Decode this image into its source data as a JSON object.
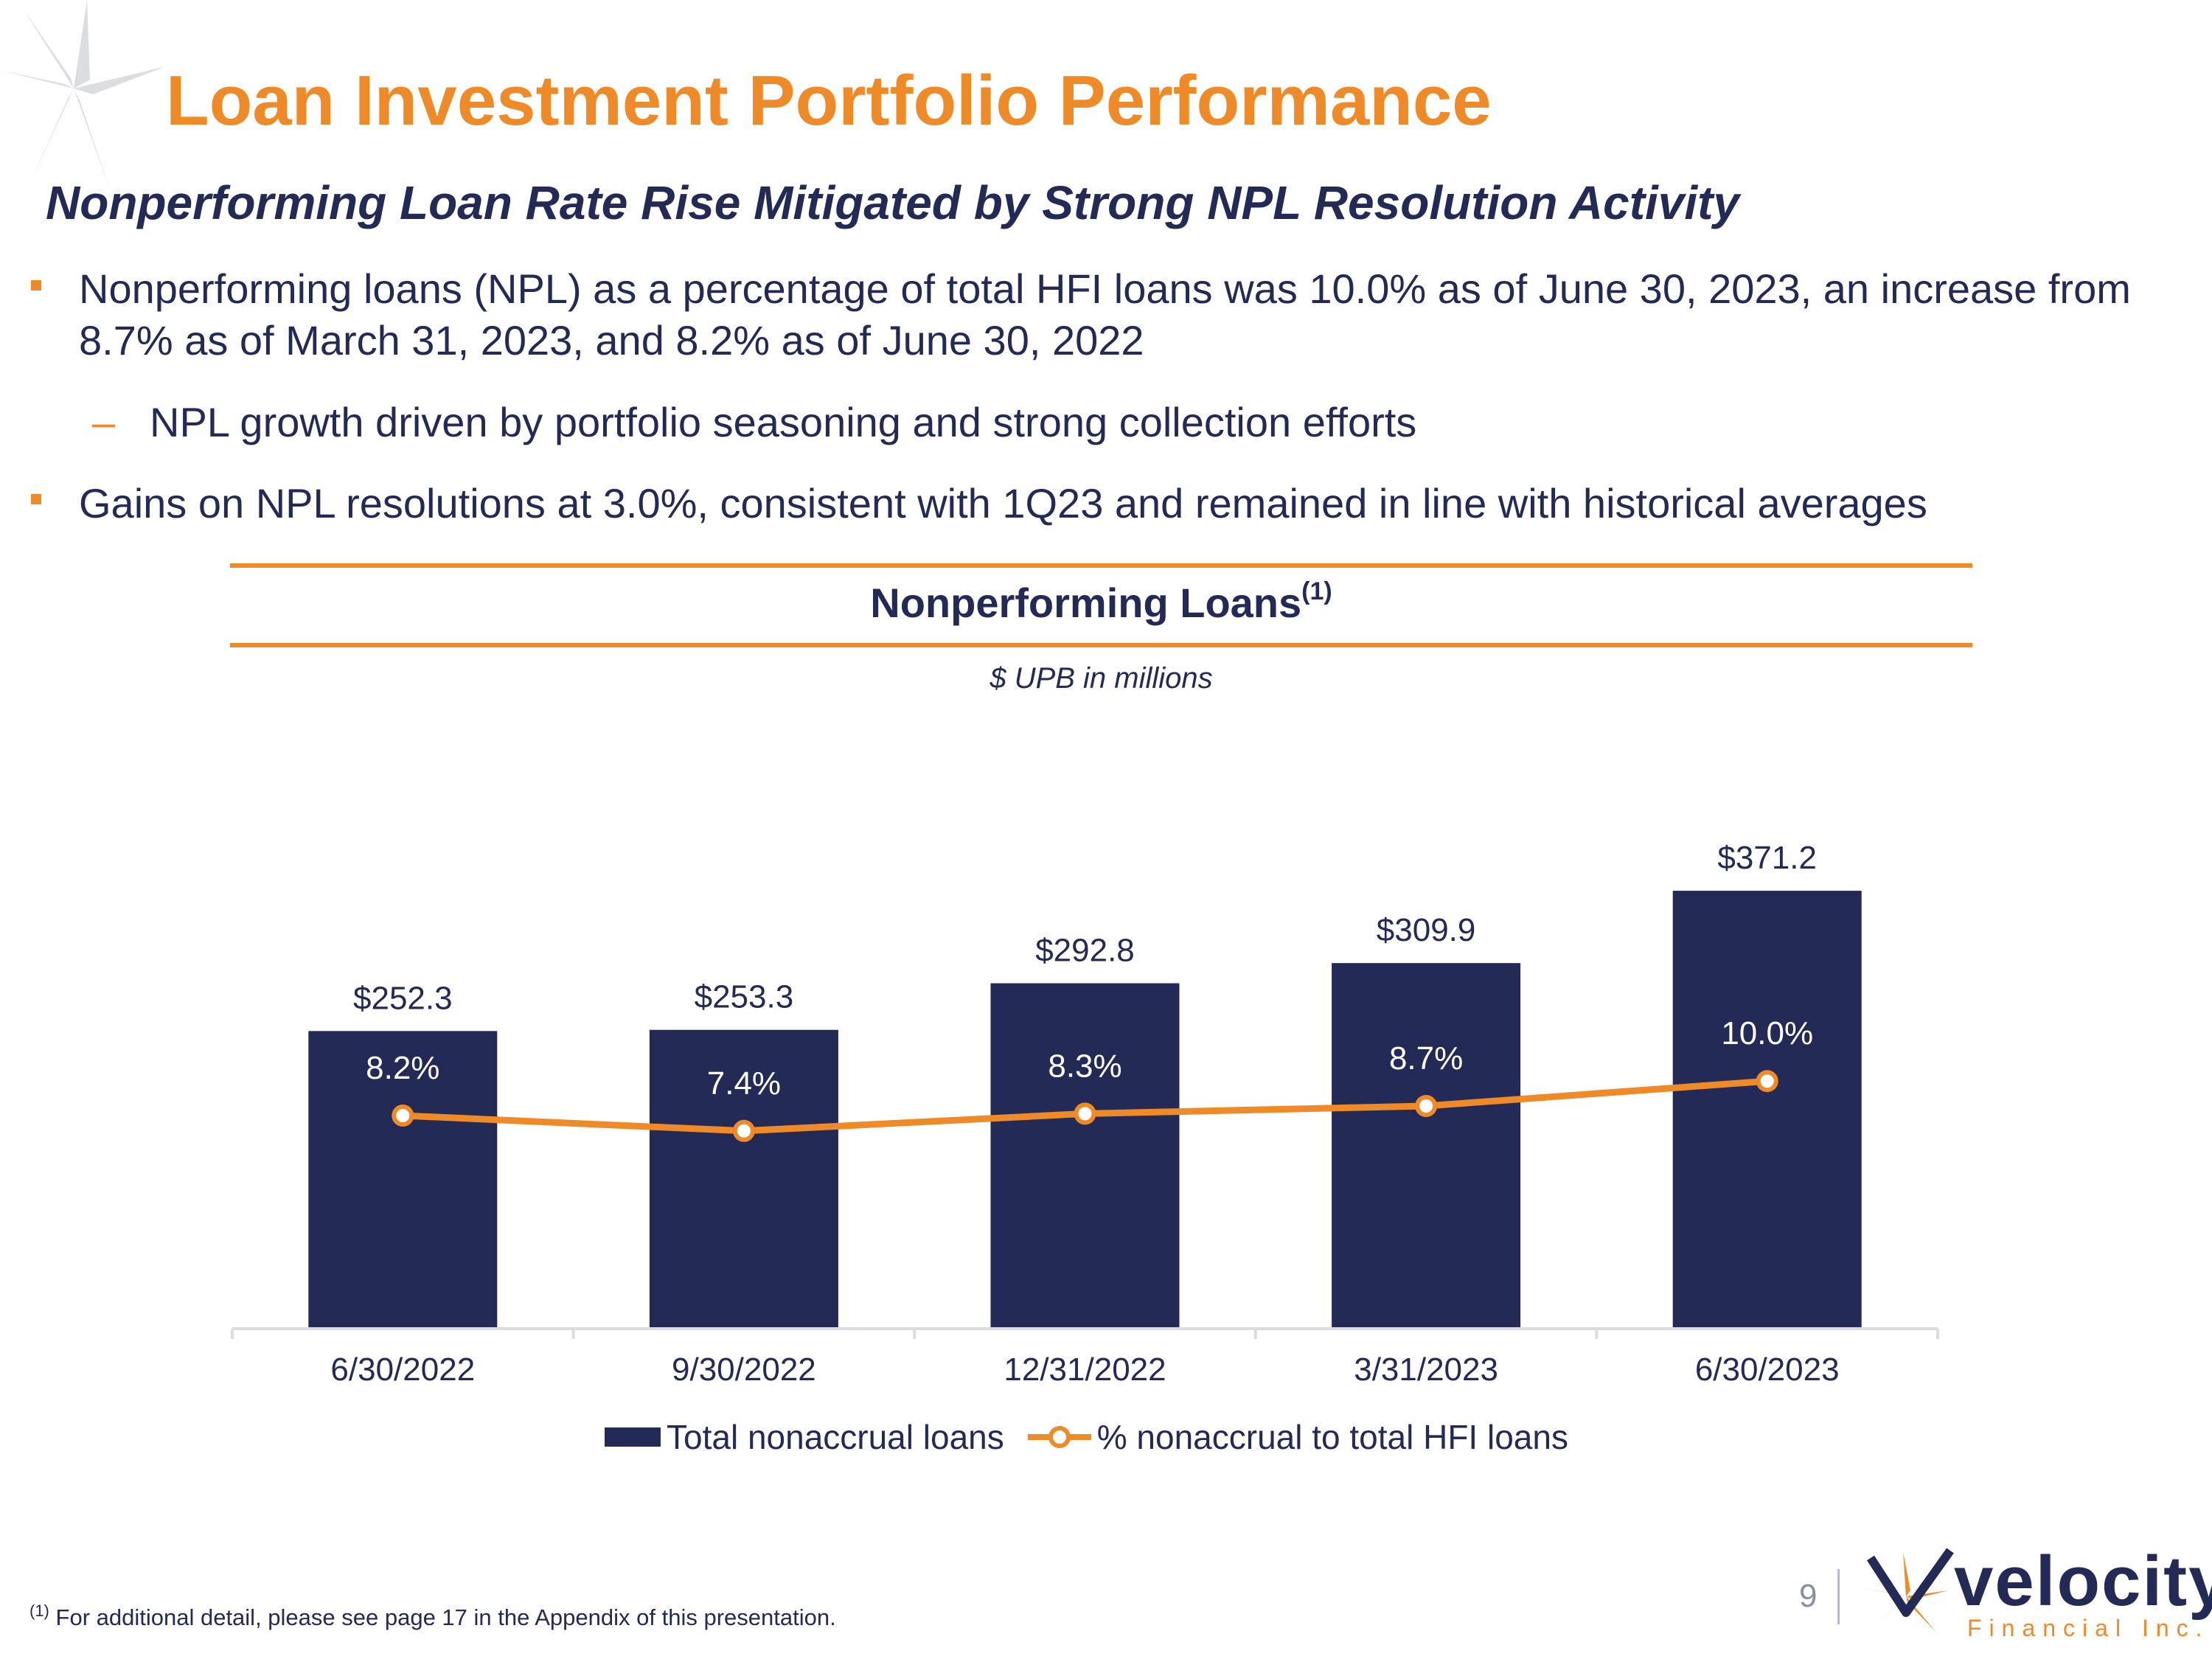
{
  "title": "Loan Investment Portfolio Performance",
  "subtitle": "Nonperforming Loan Rate Rise Mitigated by Strong NPL Resolution Activity",
  "bullets": [
    {
      "text": "Nonperforming loans (NPL) as a percentage of total HFI loans was 10.0% as of June 30, 2023, an increase from 8.7% as of March 31, 2023, and 8.2% as of June 30, 2022",
      "sub": "NPL growth driven by portfolio seasoning and strong collection efforts"
    },
    {
      "text": "Gains on NPL resolutions at 3.0%, consistent with 1Q23 and remained in line with historical averages"
    }
  ],
  "chart_data": {
    "type": "bar",
    "title": "Nonperforming Loans",
    "title_superscript": "(1)",
    "unit_note": "$ UPB in millions",
    "categories": [
      "6/30/2022",
      "9/30/2022",
      "12/31/2022",
      "3/31/2023",
      "6/30/2023"
    ],
    "series": [
      {
        "name": "Total nonaccrual loans",
        "type": "bar",
        "values": [
          252.3,
          253.3,
          292.8,
          309.9,
          371.2
        ],
        "labels": [
          "$252.3",
          "$253.3",
          "$292.8",
          "$309.9",
          "$371.2"
        ],
        "color": "#232A56"
      },
      {
        "name": "% nonaccrual to total HFI loans",
        "type": "line",
        "values": [
          8.2,
          7.4,
          8.3,
          8.7,
          10.0
        ],
        "labels": [
          "8.2%",
          "7.4%",
          "8.3%",
          "8.7%",
          "10.0%"
        ],
        "color": "#EE8A27"
      }
    ],
    "legend_position": "bottom",
    "grid": false
  },
  "footnote": {
    "marker": "(1)",
    "text": "For additional detail, please see page 17 in the Appendix of this presentation."
  },
  "page_number": "9",
  "logo": {
    "word": "velocity",
    "sub": "Financial Inc."
  },
  "colors": {
    "accent": "#EE8A27",
    "navy": "#232A56"
  }
}
